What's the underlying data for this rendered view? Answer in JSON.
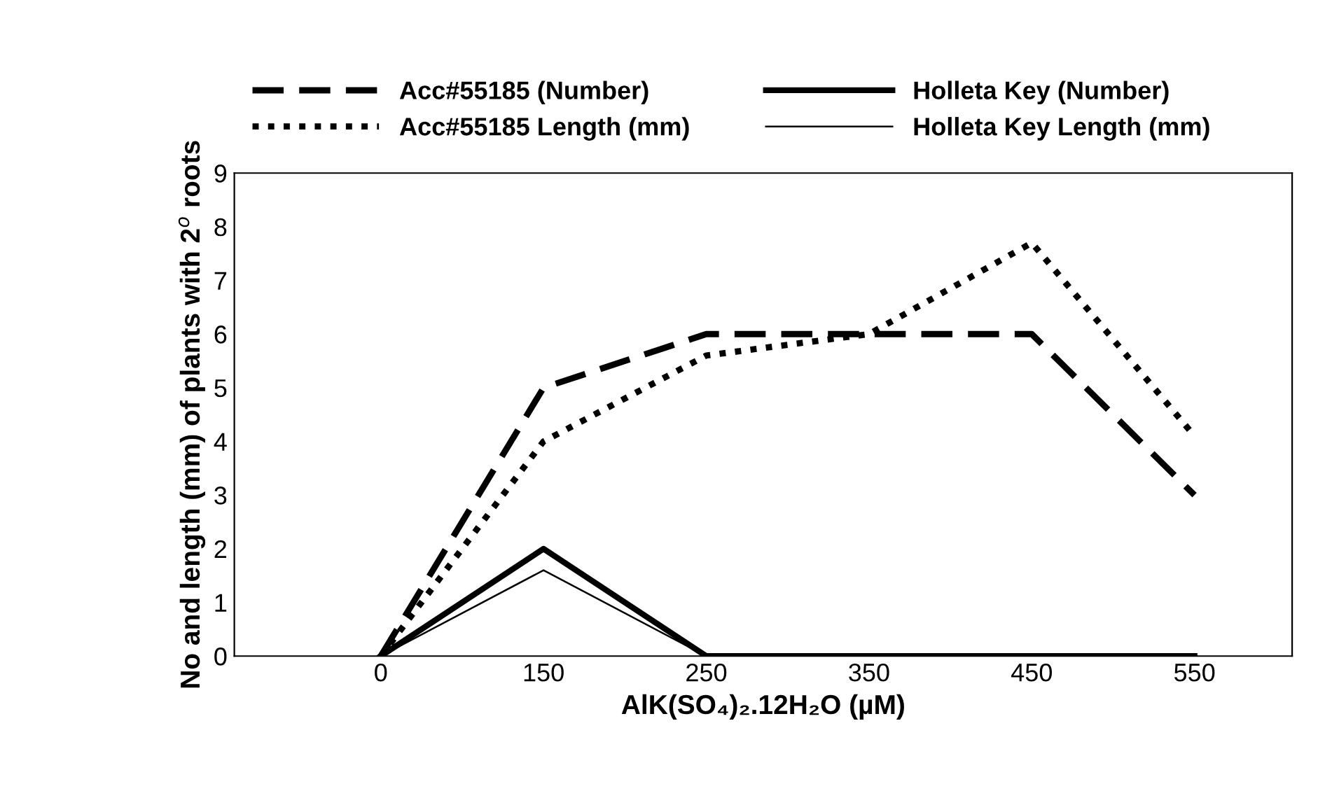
{
  "chart_data": {
    "type": "line",
    "xlabel": "AlK(SO₄)₂.12H₂O (µM)",
    "ylabel": "No and length (mm) of plants with 2$^{o}$ roots",
    "categories": [
      "0",
      "150",
      "250",
      "350",
      "450",
      "550"
    ],
    "series": [
      {
        "name": "Acc#55185 (Number)",
        "color": "#000000",
        "line_style": "dashed",
        "values": [
          0,
          5,
          6,
          6,
          6,
          3
        ]
      },
      {
        "name": "Acc#55185 Length (mm)",
        "color": "#000000",
        "line_style": "dotted",
        "values": [
          0,
          4,
          5.6,
          6,
          7.7,
          4.1
        ]
      },
      {
        "name": "Holleta Key (Number)",
        "color": "#000000",
        "line_style": "solid",
        "values": [
          0,
          2,
          0,
          0,
          0,
          0
        ]
      },
      {
        "name": "Holleta Key Length (mm)",
        "color": "#000000",
        "line_style": "solid",
        "values": [
          0,
          1.6,
          0,
          0,
          0,
          0
        ]
      }
    ],
    "ylim": [
      0,
      9
    ],
    "yticks": [
      0,
      1,
      2,
      3,
      4,
      5,
      6,
      7,
      8,
      9
    ],
    "grid": false,
    "legend": "top",
    "marker": "none"
  }
}
